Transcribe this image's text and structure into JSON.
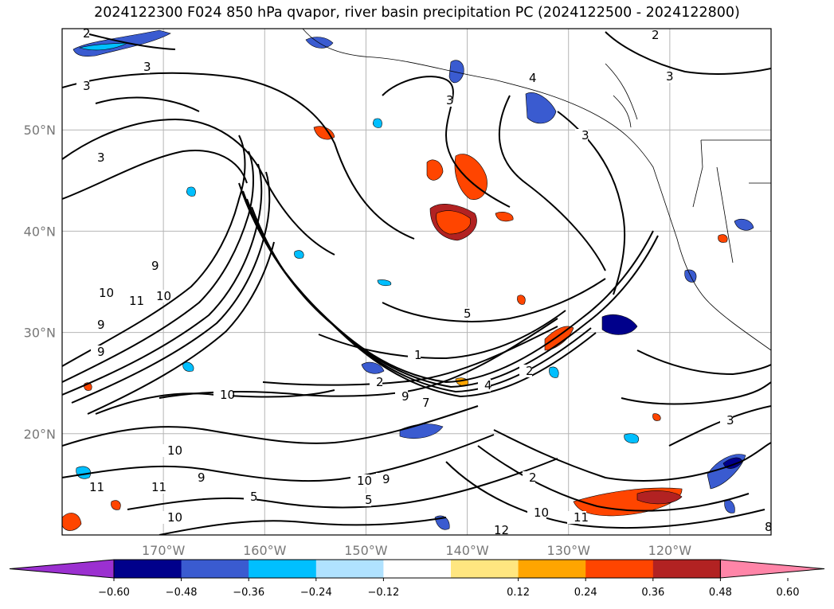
{
  "title": "2024122300 F024 850 hPa qvapor, river basin precipitation PC (2024122500 - 2024122800)",
  "axes": {
    "lat_ticks": [
      "50°N",
      "40°N",
      "30°N",
      "20°N"
    ],
    "lon_ticks": [
      "170°W",
      "160°W",
      "150°W",
      "140°W",
      "130°W",
      "120°W"
    ]
  },
  "colorbar": {
    "ticks": [
      "−0.60",
      "−0.48",
      "−0.36",
      "−0.24",
      "−0.12",
      "0.12",
      "0.24",
      "0.36",
      "0.48",
      "0.60"
    ],
    "colors": [
      "#9b30d0",
      "#00008b",
      "#3a5bd0",
      "#00bfff",
      "#b0e2ff",
      "#ffffff",
      "#ffe680",
      "#ffa500",
      "#ff4500",
      "#b22222",
      "#ff85a8"
    ]
  },
  "contour_labels": [
    {
      "text": "2"
    },
    {
      "text": "2"
    },
    {
      "text": "3"
    },
    {
      "text": "3"
    },
    {
      "text": "3"
    },
    {
      "text": "3"
    },
    {
      "text": "4"
    },
    {
      "text": "3"
    },
    {
      "text": "3"
    },
    {
      "text": "9"
    },
    {
      "text": "10"
    },
    {
      "text": "11"
    },
    {
      "text": "10"
    },
    {
      "text": "9"
    },
    {
      "text": "9"
    },
    {
      "text": "10"
    },
    {
      "text": "5"
    },
    {
      "text": "1"
    },
    {
      "text": "2"
    },
    {
      "text": "9"
    },
    {
      "text": "7"
    },
    {
      "text": "4"
    },
    {
      "text": "2"
    },
    {
      "text": "3"
    },
    {
      "text": "10"
    },
    {
      "text": "9"
    },
    {
      "text": "11"
    },
    {
      "text": "5"
    },
    {
      "text": "10"
    },
    {
      "text": "9"
    },
    {
      "text": "2"
    },
    {
      "text": "10"
    },
    {
      "text": "11"
    },
    {
      "text": "12"
    },
    {
      "text": "8"
    },
    {
      "text": "10"
    },
    {
      "text": "11"
    },
    {
      "text": "5"
    }
  ],
  "chart_data": {
    "type": "map",
    "title": "2024122300 F024 850 hPa qvapor, river basin precipitation PC (2024122500 - 2024122800)",
    "lon_range": [
      -180,
      -110
    ],
    "lat_range": [
      10,
      60
    ],
    "grid": true,
    "colorbar_levels": [
      -0.6,
      -0.48,
      -0.36,
      -0.24,
      -0.12,
      0.12,
      0.24,
      0.36,
      0.48,
      0.6
    ]
  }
}
